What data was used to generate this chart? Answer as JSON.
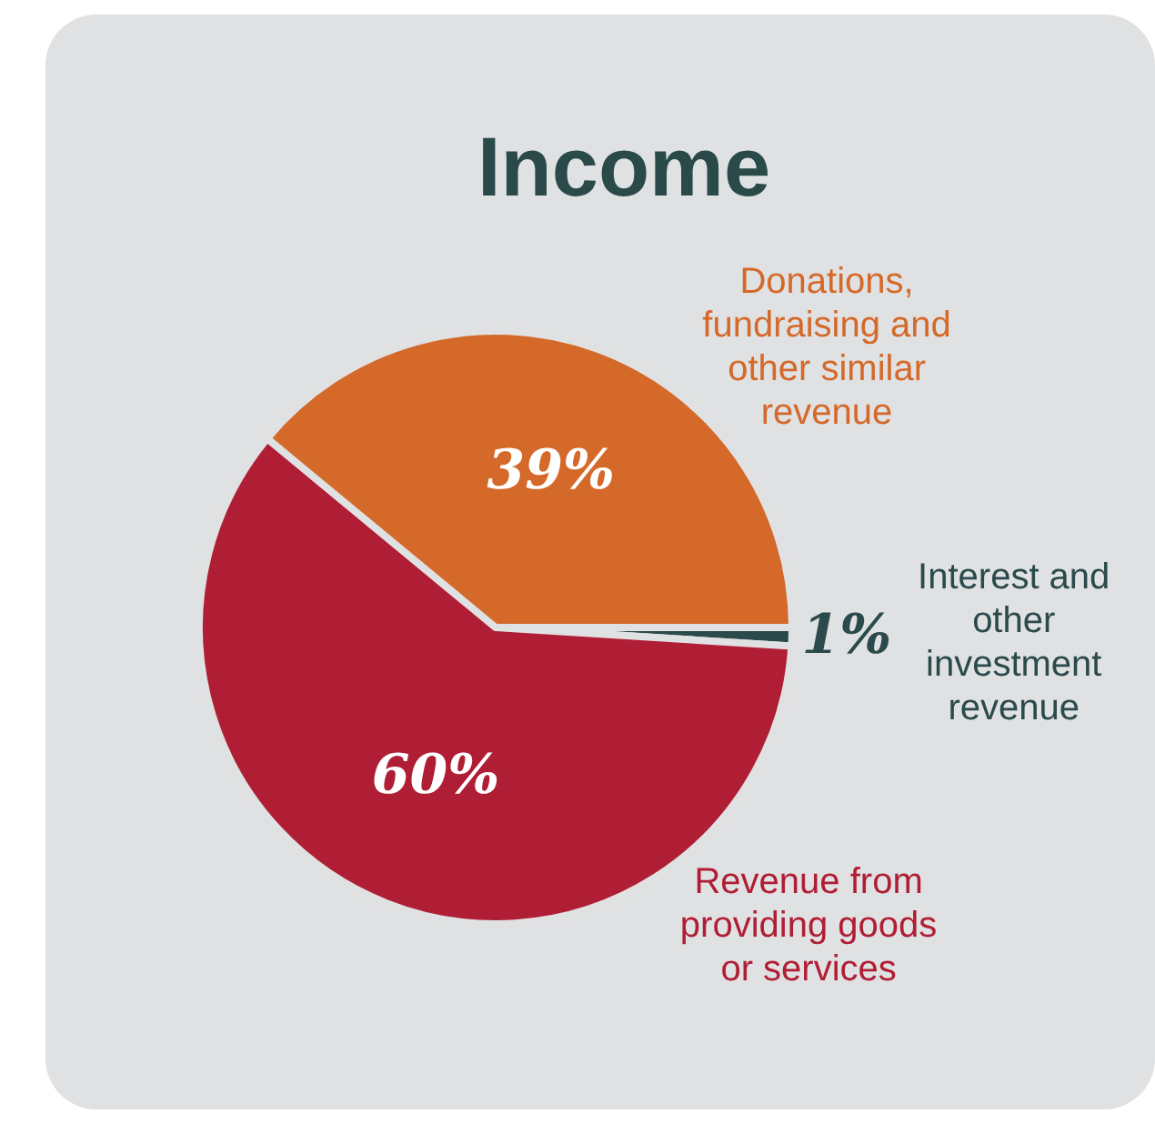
{
  "chart_data": {
    "type": "pie",
    "title": "Income",
    "categories": [
      "Interest and other investment revenue",
      "Revenue from providing goods or services",
      "Donations, fundraising and other similar revenue"
    ],
    "values": [
      1,
      60,
      39
    ],
    "colors": [
      "#2b4a4b",
      "#b01e35",
      "#d4692a"
    ],
    "value_labels": [
      "1%",
      "60%",
      "39%"
    ],
    "legend": false
  }
}
